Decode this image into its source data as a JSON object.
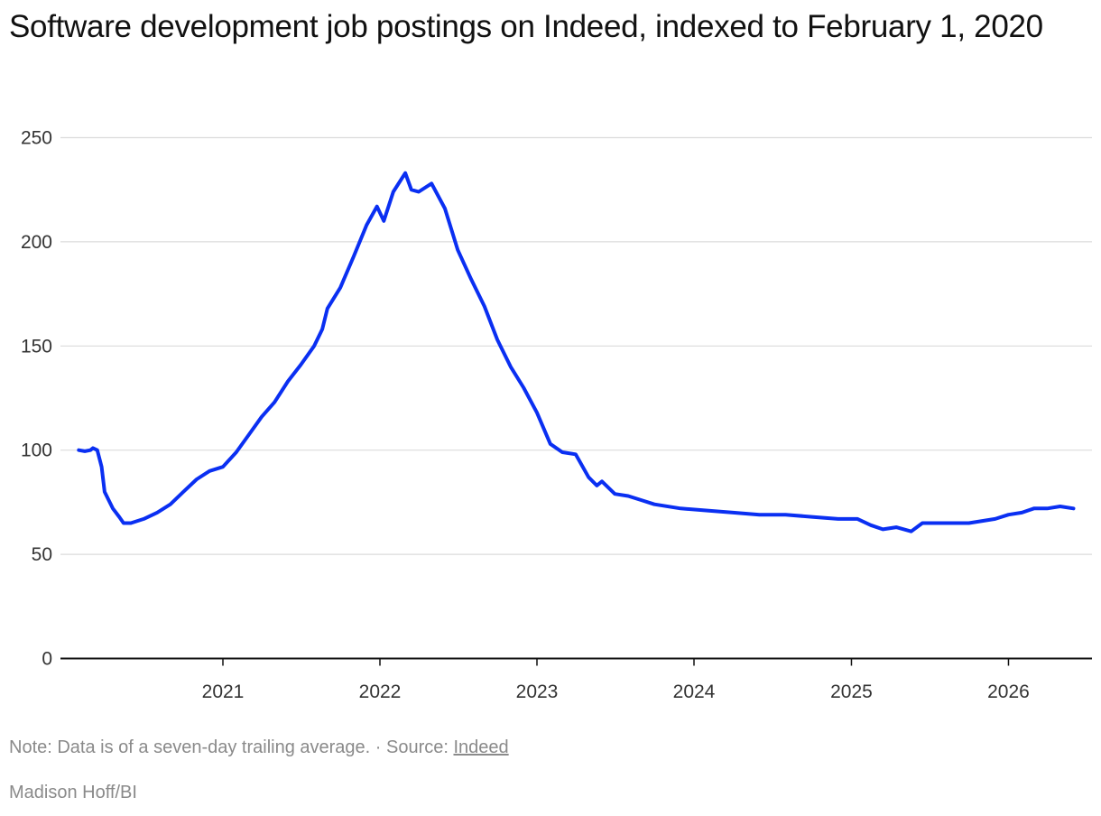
{
  "chart_data": {
    "type": "line",
    "title": "Software development job postings on Indeed, indexed to February 1, 2020",
    "xlabel": "",
    "ylabel": "",
    "ylim": [
      0,
      250
    ],
    "yticks": [
      "0",
      "50",
      "100",
      "150",
      "200",
      "250"
    ],
    "xticks": [
      "2021",
      "2022",
      "2023",
      "2024",
      "2025",
      "2026"
    ],
    "grid": true,
    "series_color": "#0a2ff2",
    "series": [
      {
        "values": [
          [
            "2020-02-01",
            100
          ],
          [
            "2020-02-15",
            99.5
          ],
          [
            "2020-02-28",
            100
          ],
          [
            "2020-03-05",
            101
          ],
          [
            "2020-03-15",
            100
          ],
          [
            "2020-03-25",
            92
          ],
          [
            "2020-04-01",
            80
          ],
          [
            "2020-04-20",
            72
          ],
          [
            "2020-05-05",
            68
          ],
          [
            "2020-05-15",
            65
          ],
          [
            "2020-06-01",
            65
          ],
          [
            "2020-07-01",
            67
          ],
          [
            "2020-08-01",
            70
          ],
          [
            "2020-09-01",
            74
          ],
          [
            "2020-10-01",
            80
          ],
          [
            "2020-11-01",
            86
          ],
          [
            "2020-12-01",
            90
          ],
          [
            "2021-01-01",
            92
          ],
          [
            "2021-02-01",
            99
          ],
          [
            "2021-03-01",
            107
          ],
          [
            "2021-04-01",
            116
          ],
          [
            "2021-05-01",
            123
          ],
          [
            "2021-06-01",
            133
          ],
          [
            "2021-07-01",
            141
          ],
          [
            "2021-08-01",
            150
          ],
          [
            "2021-08-20",
            158
          ],
          [
            "2021-09-01",
            168
          ],
          [
            "2021-10-01",
            178
          ],
          [
            "2021-11-01",
            193
          ],
          [
            "2021-12-01",
            208
          ],
          [
            "2021-12-25",
            217
          ],
          [
            "2022-01-10",
            210
          ],
          [
            "2022-02-01",
            224
          ],
          [
            "2022-03-01",
            233
          ],
          [
            "2022-03-15",
            225
          ],
          [
            "2022-04-01",
            224
          ],
          [
            "2022-05-01",
            228
          ],
          [
            "2022-06-01",
            216
          ],
          [
            "2022-07-01",
            196
          ],
          [
            "2022-08-01",
            182
          ],
          [
            "2022-09-01",
            169
          ],
          [
            "2022-10-01",
            153
          ],
          [
            "2022-11-01",
            140
          ],
          [
            "2022-12-01",
            130
          ],
          [
            "2023-01-01",
            118
          ],
          [
            "2023-02-01",
            103
          ],
          [
            "2023-03-01",
            99
          ],
          [
            "2023-04-01",
            98
          ],
          [
            "2023-05-01",
            87
          ],
          [
            "2023-05-20",
            83
          ],
          [
            "2023-06-01",
            85
          ],
          [
            "2023-07-01",
            79
          ],
          [
            "2023-08-01",
            78
          ],
          [
            "2023-09-01",
            76
          ],
          [
            "2023-10-01",
            74
          ],
          [
            "2023-12-01",
            72
          ],
          [
            "2024-02-01",
            71
          ],
          [
            "2024-04-01",
            70
          ],
          [
            "2024-06-01",
            69
          ],
          [
            "2024-08-01",
            69
          ],
          [
            "2024-10-01",
            68
          ],
          [
            "2024-12-01",
            67
          ],
          [
            "2025-01-15",
            67
          ],
          [
            "2025-02-15",
            64
          ],
          [
            "2025-03-15",
            62
          ],
          [
            "2025-04-15",
            63
          ],
          [
            "2025-05-20",
            61
          ],
          [
            "2025-06-15",
            65
          ],
          [
            "2025-08-01",
            65
          ],
          [
            "2025-10-01",
            65
          ],
          [
            "2025-12-01",
            67
          ],
          [
            "2026-01-01",
            69
          ],
          [
            "2026-02-01",
            70
          ],
          [
            "2026-03-01",
            72
          ],
          [
            "2026-04-01",
            72
          ],
          [
            "2026-05-01",
            73
          ],
          [
            "2026-06-01",
            72
          ]
        ]
      }
    ]
  },
  "note": {
    "text": "Note: Data is of a seven-day trailing average. · Source: ",
    "source_link": "Indeed"
  },
  "credit": "Madison Hoff/BI"
}
